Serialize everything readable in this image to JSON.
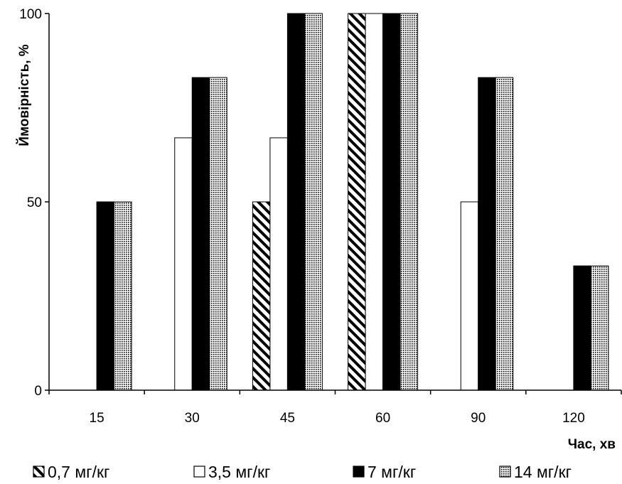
{
  "chart_data": {
    "type": "bar",
    "title": "",
    "xlabel": "Час, хв",
    "ylabel": "Ймовірність, %",
    "categories": [
      "15",
      "30",
      "45",
      "60",
      "90",
      "120"
    ],
    "ylim": [
      0,
      100
    ],
    "yticks": [
      "0",
      "50",
      "100"
    ],
    "grid": false,
    "legend_position": "bottom",
    "series": [
      {
        "name": "0,7 мг/кг",
        "pattern": "hatch",
        "values": [
          0,
          0,
          50,
          100,
          0,
          0
        ]
      },
      {
        "name": "3,5 мг/кг",
        "pattern": "white",
        "values": [
          0,
          67,
          67,
          100,
          50,
          0
        ]
      },
      {
        "name": "7 мг/кг",
        "pattern": "black",
        "values": [
          50,
          83,
          100,
          100,
          83,
          33
        ]
      },
      {
        "name": "14 мг/кг",
        "pattern": "dotted",
        "values": [
          50,
          83,
          100,
          100,
          83,
          33
        ]
      }
    ]
  }
}
